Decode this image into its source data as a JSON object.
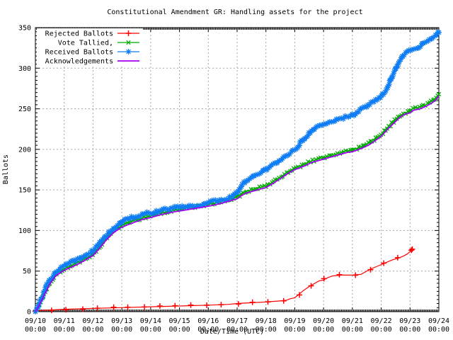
{
  "window": {
    "title": "Constitutional Amendment GR: Handling assets for the project"
  },
  "colors": {
    "background": "#ffffff",
    "border": "#000000",
    "grid": "#a6a6a6",
    "rejected": "#ff0000",
    "tallied": "#00aa00",
    "received": "#0e7cf5",
    "acknowledgements": "#a000f0"
  },
  "chart_data": {
    "type": "line",
    "title": "Constitutional Amendment GR: Handling assets for the project",
    "xlabel": "Date/Time (UTC)",
    "ylabel": "Ballots",
    "ylim": [
      0,
      350
    ],
    "ytick_step": 50,
    "y_minor_step": 5,
    "x_days": 14,
    "x_minor_per_day": 24,
    "grid": true,
    "legend_position": "top-left",
    "x_ticks": [
      {
        "date": "09/10",
        "time": "00:00"
      },
      {
        "date": "09/11",
        "time": "00:00"
      },
      {
        "date": "09/12",
        "time": "00:00"
      },
      {
        "date": "09/13",
        "time": "00:00"
      },
      {
        "date": "09/14",
        "time": "00:00"
      },
      {
        "date": "09/15",
        "time": "00:00"
      },
      {
        "date": "09/16",
        "time": "00:00"
      },
      {
        "date": "09/17",
        "time": "00:00"
      },
      {
        "date": "09/18",
        "time": "00:00"
      },
      {
        "date": "09/19",
        "time": "00:00"
      },
      {
        "date": "09/20",
        "time": "00:00"
      },
      {
        "date": "09/21",
        "time": "00:00"
      },
      {
        "date": "09/22",
        "time": "00:00"
      },
      {
        "date": "09/23",
        "time": "00:00"
      },
      {
        "date": "09/24",
        "time": "00:00"
      }
    ],
    "y_tick_labels": [
      "0",
      "50",
      "100",
      "150",
      "200",
      "250",
      "300",
      "350"
    ],
    "series": [
      {
        "name": "Rejected Ballots",
        "color": "#ff0000",
        "marker": "plus",
        "points": [
          [
            0,
            1
          ],
          [
            0.5,
            2
          ],
          [
            1,
            3
          ],
          [
            2,
            4
          ],
          [
            3,
            5
          ],
          [
            4,
            6
          ],
          [
            5,
            7
          ],
          [
            6,
            8
          ],
          [
            6.7,
            9
          ],
          [
            7,
            10
          ],
          [
            7.5,
            11
          ],
          [
            8,
            12
          ],
          [
            8.4,
            13
          ],
          [
            8.7,
            14
          ],
          [
            8.85,
            16
          ],
          [
            9,
            17
          ],
          [
            9.1,
            20
          ],
          [
            9.3,
            26
          ],
          [
            9.5,
            31
          ],
          [
            9.7,
            35
          ],
          [
            9.85,
            38
          ],
          [
            10,
            39
          ],
          [
            10.15,
            42
          ],
          [
            10.3,
            44
          ],
          [
            10.6,
            45
          ],
          [
            11,
            45
          ],
          [
            11.3,
            46
          ],
          [
            11.45,
            49
          ],
          [
            11.6,
            52
          ],
          [
            11.8,
            55
          ],
          [
            12,
            58
          ],
          [
            12.2,
            61
          ],
          [
            12.4,
            64
          ],
          [
            12.6,
            66
          ],
          [
            12.8,
            69
          ],
          [
            12.9,
            71
          ],
          [
            13,
            74
          ],
          [
            13.08,
            77
          ]
        ]
      },
      {
        "name": "Vote Tallied,",
        "color": "#00aa00",
        "marker": "cross",
        "points": [
          [
            0,
            0
          ],
          [
            0.12,
            8
          ],
          [
            0.3,
            22
          ],
          [
            0.5,
            36
          ],
          [
            0.7,
            46
          ],
          [
            1,
            53
          ],
          [
            1.25,
            57
          ],
          [
            1.5,
            61
          ],
          [
            1.75,
            66
          ],
          [
            2,
            71
          ],
          [
            2.2,
            79
          ],
          [
            2.45,
            90
          ],
          [
            2.7,
            99
          ],
          [
            2.9,
            104
          ],
          [
            3,
            106
          ],
          [
            3.2,
            109
          ],
          [
            3.5,
            113
          ],
          [
            3.75,
            116
          ],
          [
            4,
            118
          ],
          [
            4.4,
            122
          ],
          [
            4.8,
            125
          ],
          [
            5,
            126
          ],
          [
            5.5,
            129
          ],
          [
            6,
            132
          ],
          [
            6.4,
            135
          ],
          [
            6.8,
            139
          ],
          [
            7,
            141
          ],
          [
            7.15,
            145
          ],
          [
            7.3,
            148
          ],
          [
            7.6,
            151
          ],
          [
            8,
            155
          ],
          [
            8.2,
            159
          ],
          [
            8.5,
            166
          ],
          [
            8.75,
            172
          ],
          [
            9,
            177
          ],
          [
            9.3,
            181
          ],
          [
            9.6,
            186
          ],
          [
            10,
            190
          ],
          [
            10.4,
            194
          ],
          [
            10.8,
            198
          ],
          [
            11,
            199
          ],
          [
            11.3,
            203
          ],
          [
            11.6,
            208
          ],
          [
            11.8,
            213
          ],
          [
            12,
            218
          ],
          [
            12.2,
            226
          ],
          [
            12.4,
            233
          ],
          [
            12.6,
            240
          ],
          [
            12.8,
            245
          ],
          [
            13,
            247
          ],
          [
            13.1,
            250
          ],
          [
            13.35,
            252
          ],
          [
            13.55,
            255
          ],
          [
            13.75,
            259
          ],
          [
            13.9,
            263
          ],
          [
            14,
            268
          ]
        ]
      },
      {
        "name": "Received Ballots",
        "color": "#0e7cf5",
        "marker": "star",
        "points": [
          [
            0,
            0
          ],
          [
            0.1,
            6
          ],
          [
            0.25,
            20
          ],
          [
            0.4,
            33
          ],
          [
            0.55,
            42
          ],
          [
            0.74,
            50
          ],
          [
            1,
            57
          ],
          [
            1.25,
            61
          ],
          [
            1.5,
            65
          ],
          [
            1.75,
            70
          ],
          [
            2,
            75
          ],
          [
            2.15,
            81
          ],
          [
            2.35,
            90
          ],
          [
            2.6,
            99
          ],
          [
            2.85,
            106
          ],
          [
            3,
            110
          ],
          [
            3.05,
            113
          ],
          [
            3.2,
            115
          ],
          [
            3.5,
            117
          ],
          [
            3.75,
            120
          ],
          [
            4,
            122
          ],
          [
            4.3,
            124
          ],
          [
            4.6,
            127
          ],
          [
            5,
            129
          ],
          [
            5.4,
            130
          ],
          [
            5.8,
            131
          ],
          [
            6,
            135
          ],
          [
            6.3,
            137
          ],
          [
            6.6,
            139
          ],
          [
            6.85,
            142
          ],
          [
            7,
            147
          ],
          [
            7.1,
            153
          ],
          [
            7.2,
            158
          ],
          [
            7.35,
            162
          ],
          [
            7.6,
            167
          ],
          [
            7.8,
            171
          ],
          [
            8,
            175
          ],
          [
            8.25,
            181
          ],
          [
            8.5,
            187
          ],
          [
            8.75,
            193
          ],
          [
            9,
            199
          ],
          [
            9.15,
            206
          ],
          [
            9.3,
            212
          ],
          [
            9.5,
            219
          ],
          [
            9.7,
            226
          ],
          [
            9.85,
            229
          ],
          [
            10,
            231
          ],
          [
            10.3,
            234
          ],
          [
            10.6,
            238
          ],
          [
            10.9,
            241
          ],
          [
            11,
            242
          ],
          [
            11.2,
            246
          ],
          [
            11.35,
            250
          ],
          [
            11.5,
            253
          ],
          [
            11.7,
            258
          ],
          [
            11.85,
            261
          ],
          [
            12,
            265
          ],
          [
            12.15,
            272
          ],
          [
            12.3,
            284
          ],
          [
            12.45,
            295
          ],
          [
            12.6,
            305
          ],
          [
            12.75,
            315
          ],
          [
            12.9,
            320
          ],
          [
            13,
            322
          ],
          [
            13.15,
            324
          ],
          [
            13.3,
            325
          ],
          [
            13.45,
            330
          ],
          [
            13.6,
            333
          ],
          [
            13.75,
            337
          ],
          [
            13.9,
            341
          ],
          [
            14,
            344
          ]
        ]
      },
      {
        "name": "Acknowledgements",
        "color": "#a000f0",
        "marker": "none",
        "points": [
          [
            0,
            0
          ],
          [
            0.12,
            7
          ],
          [
            0.3,
            20
          ],
          [
            0.5,
            34
          ],
          [
            0.7,
            44
          ],
          [
            1,
            51
          ],
          [
            1.25,
            55
          ],
          [
            1.5,
            59
          ],
          [
            1.75,
            64
          ],
          [
            2,
            69
          ],
          [
            2.2,
            77
          ],
          [
            2.45,
            88
          ],
          [
            2.7,
            97
          ],
          [
            2.9,
            102
          ],
          [
            3,
            104
          ],
          [
            3.2,
            107
          ],
          [
            3.5,
            111
          ],
          [
            3.75,
            114
          ],
          [
            4,
            116
          ],
          [
            4.4,
            120
          ],
          [
            4.8,
            123
          ],
          [
            5,
            124
          ],
          [
            5.5,
            127
          ],
          [
            6,
            130
          ],
          [
            6.4,
            133
          ],
          [
            6.8,
            137
          ],
          [
            7,
            139
          ],
          [
            7.15,
            143
          ],
          [
            7.3,
            146
          ],
          [
            7.6,
            149
          ],
          [
            8,
            153
          ],
          [
            8.2,
            157
          ],
          [
            8.5,
            164
          ],
          [
            8.75,
            170
          ],
          [
            9,
            175
          ],
          [
            9.3,
            179
          ],
          [
            9.6,
            184
          ],
          [
            10,
            188
          ],
          [
            10.4,
            192
          ],
          [
            10.8,
            196
          ],
          [
            11,
            197
          ],
          [
            11.3,
            201
          ],
          [
            11.6,
            206
          ],
          [
            11.8,
            211
          ],
          [
            12,
            216
          ],
          [
            12.2,
            224
          ],
          [
            12.4,
            231
          ],
          [
            12.6,
            238
          ],
          [
            12.8,
            243
          ],
          [
            13,
            245
          ],
          [
            13.1,
            248
          ],
          [
            13.35,
            250
          ],
          [
            13.55,
            253
          ],
          [
            13.75,
            257
          ],
          [
            13.9,
            261
          ],
          [
            14,
            266
          ]
        ]
      }
    ]
  }
}
